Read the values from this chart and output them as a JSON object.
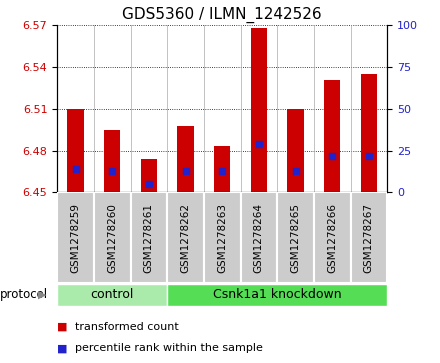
{
  "title": "GDS5360 / ILMN_1242526",
  "samples": [
    "GSM1278259",
    "GSM1278260",
    "GSM1278261",
    "GSM1278262",
    "GSM1278263",
    "GSM1278264",
    "GSM1278265",
    "GSM1278266",
    "GSM1278267"
  ],
  "bar_values": [
    6.51,
    6.495,
    6.474,
    6.498,
    6.483,
    6.568,
    6.51,
    6.531,
    6.535
  ],
  "bar_base": 6.45,
  "percentile_values": [
    14,
    13,
    5,
    13,
    13,
    29,
    13,
    22,
    22
  ],
  "ylim_left": [
    6.45,
    6.57
  ],
  "ylim_right": [
    0,
    100
  ],
  "yticks_left": [
    6.45,
    6.48,
    6.51,
    6.54,
    6.57
  ],
  "yticks_right": [
    0,
    25,
    50,
    75,
    100
  ],
  "bar_color": "#cc0000",
  "percentile_color": "#2222cc",
  "bar_width": 0.45,
  "control_color": "#aaeaaa",
  "knockdown_color": "#55dd55",
  "sample_box_color": "#cccccc",
  "legend_items": [
    {
      "label": "transformed count",
      "color": "#cc0000"
    },
    {
      "label": "percentile rank within the sample",
      "color": "#2222cc"
    }
  ],
  "title_fontsize": 11,
  "tick_fontsize": 8,
  "sample_fontsize": 7.5,
  "group_fontsize": 9,
  "legend_fontsize": 8
}
